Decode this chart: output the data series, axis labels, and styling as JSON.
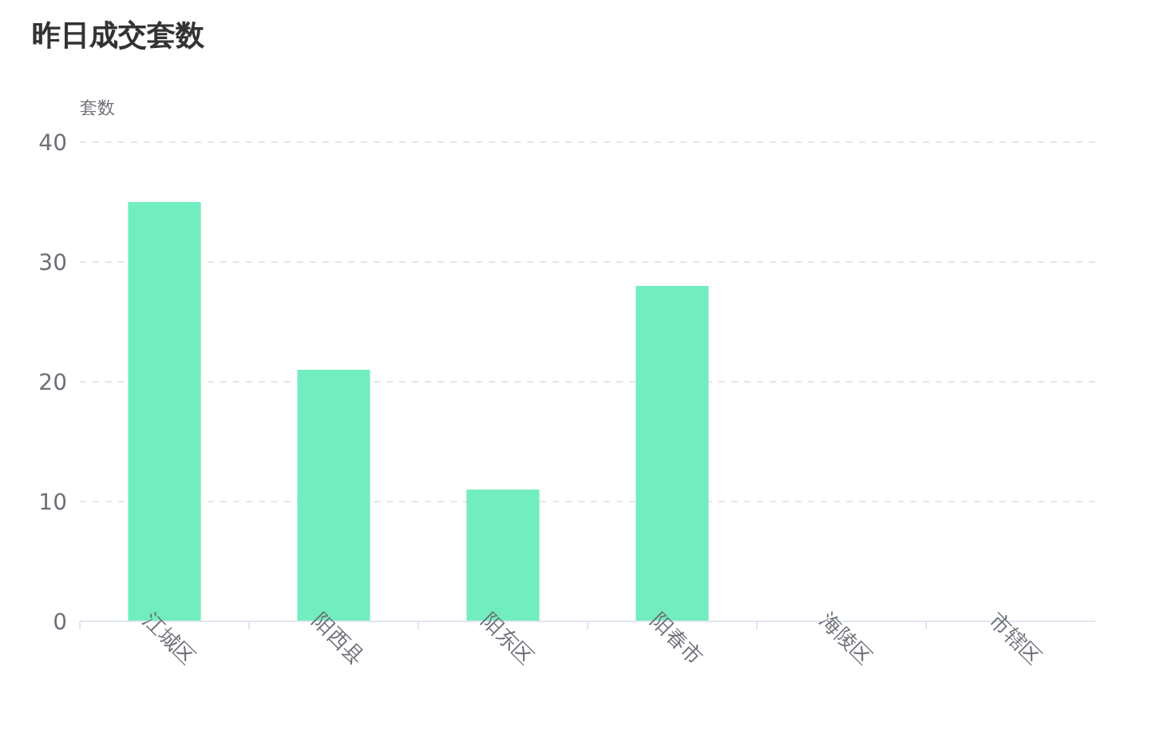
{
  "chart_data": {
    "type": "bar",
    "title": "昨日成交套数",
    "ylabel": "套数",
    "categories": [
      "江城区",
      "阳西县",
      "阳东区",
      "阳春市",
      "海陵区",
      "市辖区"
    ],
    "values": [
      35,
      21,
      11,
      28,
      0,
      0
    ],
    "color": "#72edbf",
    "ylim": [
      0,
      40
    ],
    "yticks": [
      0,
      10,
      20,
      30,
      40
    ],
    "grid": "y"
  }
}
